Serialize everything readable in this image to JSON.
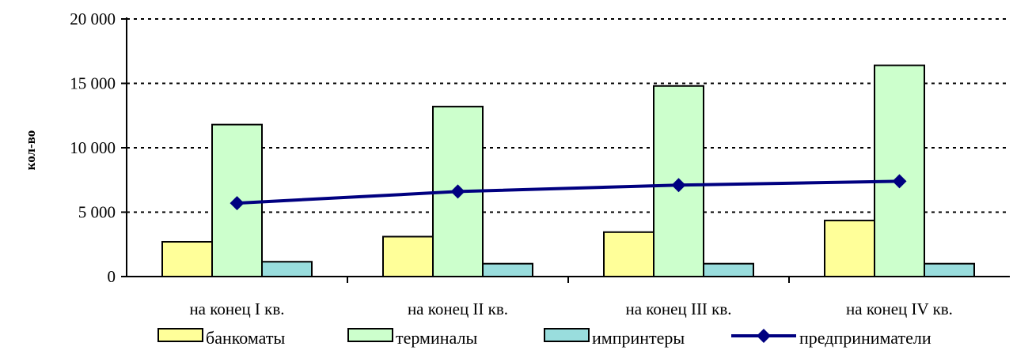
{
  "chart_data": {
    "type": "bar",
    "ylabel": "кол-во",
    "ylim": [
      0,
      20000
    ],
    "yticks": [
      0,
      5000,
      10000,
      15000,
      20000
    ],
    "ytick_labels": [
      "0",
      "5 000",
      "10 000",
      "15 000",
      "20 000"
    ],
    "grid": "dotted horizontal",
    "legend_position": "bottom",
    "categories": [
      "на конец I кв.",
      "на конец II кв.",
      "на конец III кв.",
      "на конец IV кв."
    ],
    "series": [
      {
        "name": "банкоматы",
        "kind": "bar",
        "color": "#FFFF99",
        "values": [
          2700,
          3100,
          3450,
          4350
        ]
      },
      {
        "name": "терминалы",
        "kind": "bar",
        "color": "#CCFFCC",
        "values": [
          11800,
          13200,
          14800,
          16400
        ]
      },
      {
        "name": "импринтеры",
        "kind": "bar",
        "color": "#99DDDD",
        "values": [
          1150,
          1000,
          1000,
          1000
        ]
      },
      {
        "name": "предприниматели",
        "kind": "line",
        "color": "#000080",
        "marker": "diamond",
        "values": [
          5700,
          6600,
          7100,
          7400
        ]
      }
    ]
  }
}
